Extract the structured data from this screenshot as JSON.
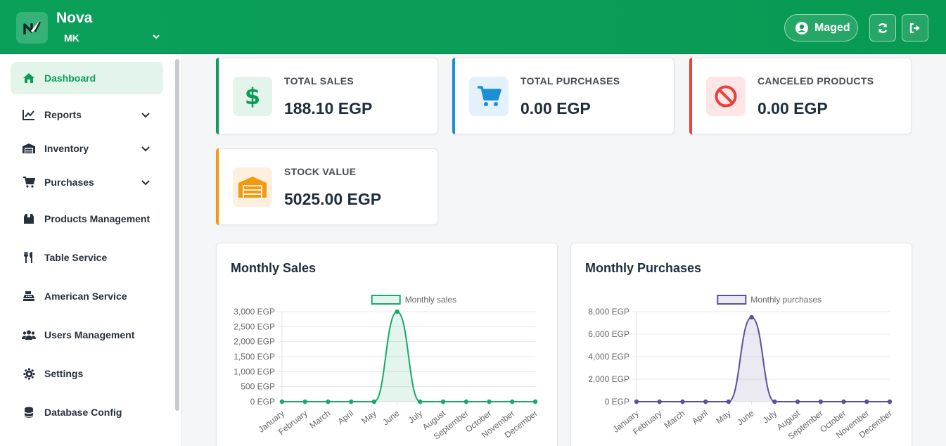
{
  "header": {
    "app_title": "Nova",
    "app_subtitle": "MK",
    "user_name": "Maged"
  },
  "sidebar": {
    "items": [
      {
        "label": "Dashboard",
        "icon": "home-icon",
        "active": true
      },
      {
        "label": "Reports",
        "icon": "chart-line-icon",
        "expandable": true
      },
      {
        "label": "Inventory",
        "icon": "warehouse-icon",
        "expandable": true
      },
      {
        "label": "Purchases",
        "icon": "cart-icon",
        "expandable": true
      },
      {
        "label": "Products Management",
        "icon": "box-icon"
      },
      {
        "label": "Table Service",
        "icon": "utensils-icon"
      },
      {
        "label": "American Service",
        "icon": "cash-register-icon"
      },
      {
        "label": "Users Management",
        "icon": "users-icon"
      },
      {
        "label": "Settings",
        "icon": "gear-icon"
      },
      {
        "label": "Database Config",
        "icon": "database-icon"
      }
    ]
  },
  "stats": {
    "total_sales": {
      "label": "TOTAL SALES",
      "value": "188.10 EGP",
      "color": "#0b9d58"
    },
    "total_purchases": {
      "label": "TOTAL PURCHASES",
      "value": "0.00 EGP",
      "color": "#1a8fd6"
    },
    "canceled_products": {
      "label": "CANCELED PRODUCTS",
      "value": "0.00 EGP",
      "color": "#e5423b"
    },
    "stock_value": {
      "label": "STOCK VALUE",
      "value": "5025.00 EGP",
      "color": "#f29a0c"
    }
  },
  "chart_data": [
    {
      "type": "area",
      "title": "Monthly Sales",
      "categories": [
        "January",
        "February",
        "March",
        "April",
        "May",
        "June",
        "July",
        "August",
        "September",
        "October",
        "November",
        "December"
      ],
      "series": [
        {
          "name": "Monthly sales",
          "values": [
            0,
            0,
            0,
            0,
            0,
            3000,
            0,
            0,
            0,
            0,
            0,
            0
          ],
          "color": "#16a96a"
        }
      ],
      "yticks": [
        "0 EGP",
        "500 EGP",
        "1,000 EGP",
        "1,500 EGP",
        "2,000 EGP",
        "2,500 EGP",
        "3,000 EGP"
      ],
      "ylim": [
        0,
        3000
      ],
      "legend": "top"
    },
    {
      "type": "area",
      "title": "Monthly Purchases",
      "categories": [
        "January",
        "February",
        "March",
        "April",
        "May",
        "June",
        "July",
        "August",
        "September",
        "October",
        "November",
        "December"
      ],
      "series": [
        {
          "name": "Monthly purchases",
          "values": [
            0,
            0,
            0,
            0,
            0,
            7500,
            0,
            0,
            0,
            0,
            0,
            0
          ],
          "color": "#5b4f9e"
        }
      ],
      "yticks": [
        "0 EGP",
        "2,000 EGP",
        "4,000 EGP",
        "6,000 EGP",
        "8,000 EGP"
      ],
      "ylim": [
        0,
        8000
      ],
      "legend": "top"
    }
  ]
}
